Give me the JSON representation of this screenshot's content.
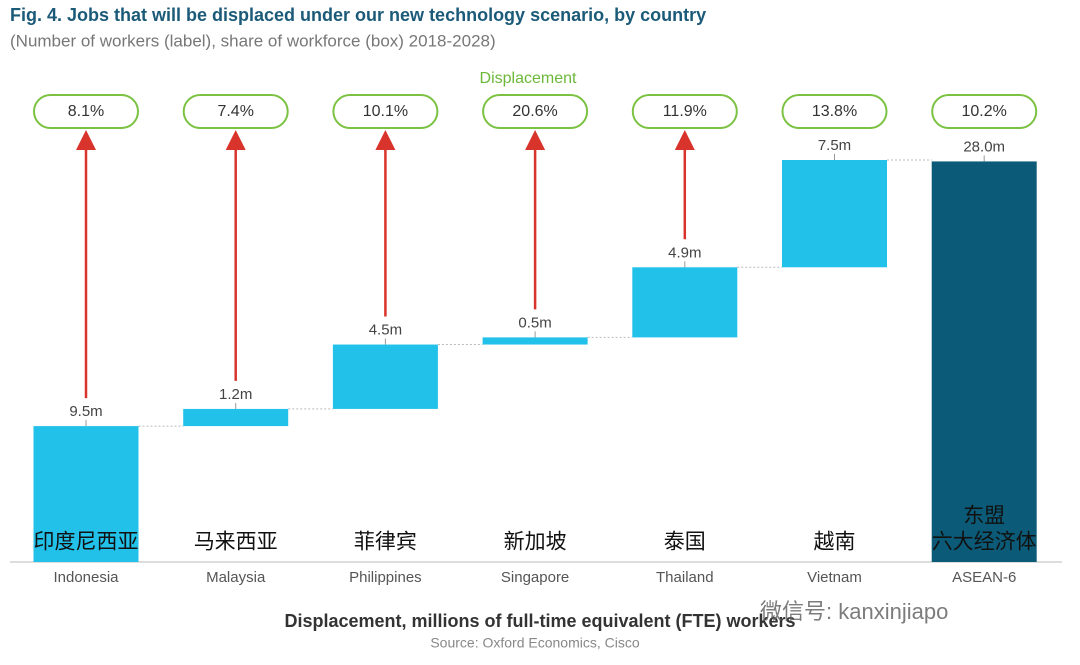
{
  "chart_data": {
    "type": "waterfall",
    "title": "Fig. 4. Jobs that will be displaced under our new technology scenario, by country",
    "subtitle": "(Number of workers (label), share of workforce (box) 2018-2028)",
    "categories": [
      "Indonesia",
      "Malaysia",
      "Philippines",
      "Singapore",
      "Thailand",
      "Vietnam",
      "ASEAN-6"
    ],
    "local_labels": [
      [
        "印度尼西亚"
      ],
      [
        "马来西亚"
      ],
      [
        "菲律宾"
      ],
      [
        "新加坡"
      ],
      [
        "泰国"
      ],
      [
        "越南"
      ],
      [
        "东盟",
        "六大经济体"
      ]
    ],
    "values": [
      9.5,
      1.2,
      4.5,
      0.5,
      4.9,
      7.5,
      28.0
    ],
    "value_labels": [
      "9.5m",
      "1.2m",
      "4.5m",
      "0.5m",
      "4.9m",
      "7.5m",
      "28.0m"
    ],
    "is_total": [
      false,
      false,
      false,
      false,
      false,
      false,
      true
    ],
    "color": "#22c1ea",
    "total_color": "#0b5b78",
    "share": {
      "name": "Displacement",
      "values": [
        8.1,
        7.4,
        10.1,
        20.6,
        11.9,
        13.8,
        10.2
      ],
      "value_labels": [
        "8.1%",
        "7.4%",
        "10.1%",
        "20.6%",
        "11.9%",
        "13.8%",
        "10.2%"
      ],
      "color": "#7cc242"
    },
    "arrow_color": "#d9342b",
    "x_label": "Displacement, millions of full-time equivalent (FTE) workers",
    "source": "Source: Oxford Economics, Cisco",
    "watermark": "微信号: kanxinjiapo"
  }
}
